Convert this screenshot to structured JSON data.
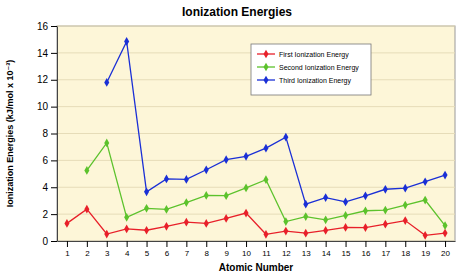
{
  "chart_data": {
    "type": "line",
    "title": "Ionization Energies",
    "x_label": "Atomic Number",
    "y_label": "Ionization Energies (kJ/mol x 10⁻³)",
    "categories": [
      1,
      2,
      3,
      4,
      5,
      6,
      7,
      8,
      9,
      10,
      11,
      12,
      13,
      14,
      15,
      16,
      17,
      18,
      19,
      20
    ],
    "series": [
      {
        "name": "First Ionization Energy",
        "color": "#e8202a",
        "marker": "diamond",
        "line_style": "solid",
        "values": [
          1.31,
          2.37,
          0.52,
          0.9,
          0.8,
          1.09,
          1.4,
          1.31,
          1.68,
          2.08,
          0.5,
          0.74,
          0.58,
          0.79,
          1.01,
          1.0,
          1.25,
          1.52,
          0.42,
          0.59
        ]
      },
      {
        "name": "Second Ionization Energy",
        "color": "#5cc22c",
        "marker": "diamond",
        "line_style": "solid",
        "values": [
          null,
          5.25,
          7.3,
          1.76,
          2.43,
          2.35,
          2.86,
          3.39,
          3.37,
          3.95,
          4.56,
          1.45,
          1.82,
          1.58,
          1.9,
          2.25,
          2.3,
          2.67,
          3.05,
          1.15
        ]
      },
      {
        "name": "Third Ionization Energy",
        "color": "#1a2fd6",
        "marker": "diamond",
        "line_style": "solid",
        "values": [
          null,
          null,
          11.8,
          14.85,
          3.66,
          4.62,
          4.58,
          5.3,
          6.05,
          6.3,
          6.91,
          7.73,
          2.74,
          3.23,
          2.91,
          3.36,
          3.85,
          3.93,
          4.41,
          4.91
        ]
      }
    ],
    "ylim": [
      0,
      16
    ],
    "yticks": [
      0,
      2,
      4,
      6,
      8,
      10,
      12,
      14,
      16
    ],
    "grid": true,
    "legend": "upper right"
  }
}
